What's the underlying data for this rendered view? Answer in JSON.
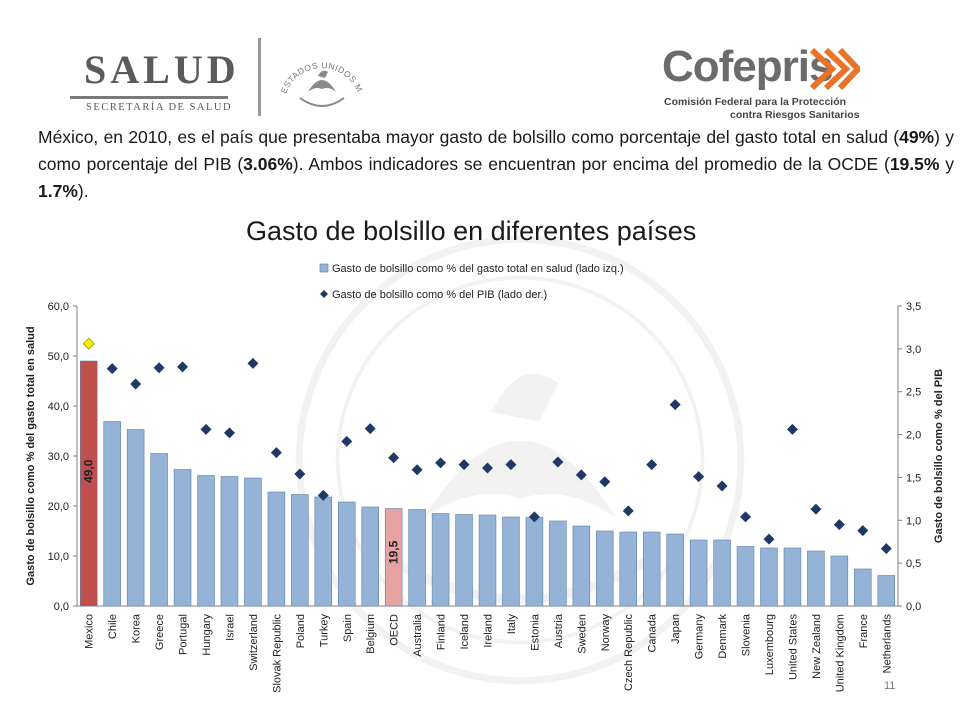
{
  "header": {
    "salud_word": "SALUD",
    "salud_sub": "SECRETARÍA DE SALUD",
    "seal_text": "ESTADOS UNIDOS MEXICANOS",
    "cofepris_name": "Cofepris",
    "cofepris_sub1": "Comisión Federal para la Protección",
    "cofepris_sub2": "contra Riesgos Sanitarios"
  },
  "intro": {
    "part1": "México, en 2010, es el país que presentaba mayor gasto de bolsillo como porcentaje del gasto total en salud (",
    "val1": "49%",
    "part2": ") y como porcentaje del PIB (",
    "val2": "3.06%",
    "part3": "). Ambos indicadores se encuentran por encima del promedio de la OCDE (",
    "val3": "19.5%",
    "part4": " y ",
    "val4": "1.7%",
    "part5": ")."
  },
  "page_number": "11",
  "colors": {
    "bar_default": "#95b3d7",
    "bar_highlight": "#c0504d",
    "bar_oecd": "#e6a3a1",
    "diamond": "#1f3864",
    "diamond_highlight": "#f2f200"
  },
  "chart_data": {
    "type": "bar",
    "title": "Gasto de bolsillo en diferentes países",
    "categories": [
      "Mexico",
      "Chile",
      "Korea",
      "Greece",
      "Portugal",
      "Hungary",
      "Israel",
      "Switzerland",
      "Slovak Republic",
      "Poland",
      "Turkey",
      "Spain",
      "Belgium",
      "OECD",
      "Australia",
      "Finland",
      "Iceland",
      "Ireland",
      "Italy",
      "Estonia",
      "Austria",
      "Sweden",
      "Norway",
      "Czech Republic",
      "Canada",
      "Japan",
      "Germany",
      "Denmark",
      "Slovenia",
      "Luxembourg",
      "United States",
      "New Zealand",
      "United Kingdom",
      "France",
      "Netherlands"
    ],
    "series": [
      {
        "name": "Gasto de bolsillo como % del gasto total en salud (lado izq.)",
        "type": "bar",
        "axis": "left",
        "values": [
          49.0,
          36.9,
          35.3,
          30.5,
          27.3,
          26.1,
          25.9,
          25.6,
          22.8,
          22.3,
          21.8,
          20.8,
          19.8,
          19.5,
          19.3,
          18.5,
          18.3,
          18.2,
          17.8,
          17.7,
          17.0,
          16.0,
          15.0,
          14.8,
          14.8,
          14.4,
          13.2,
          13.2,
          11.9,
          11.6,
          11.6,
          11.0,
          10.0,
          7.4,
          6.1
        ]
      },
      {
        "name": "Gasto de bolsillo como % del PIB (lado der.)",
        "type": "scatter",
        "axis": "right",
        "values": [
          3.06,
          2.77,
          2.59,
          2.78,
          2.79,
          2.06,
          2.02,
          2.83,
          1.79,
          1.54,
          1.29,
          1.92,
          2.07,
          1.73,
          1.59,
          1.67,
          1.65,
          1.61,
          1.65,
          1.04,
          1.68,
          1.53,
          1.45,
          1.11,
          1.65,
          2.35,
          1.51,
          1.4,
          1.04,
          0.78,
          2.06,
          1.13,
          0.95,
          0.88,
          0.67
        ]
      }
    ],
    "data_labels": [
      {
        "category": "Mexico",
        "label": "49,0"
      },
      {
        "category": "OECD",
        "label": "19,5"
      }
    ],
    "ylabel": "Gasto de bolsillo como % del gasto total en salud",
    "y2label": "Gasto de bolsillo como % del PIB",
    "ylim": [
      0,
      60
    ],
    "y2lim": [
      0,
      3.5
    ],
    "yticks": [
      "0,0",
      "10,0",
      "20,0",
      "30,0",
      "40,0",
      "50,0",
      "60,0"
    ],
    "y2ticks": [
      "0,0",
      "0,5",
      "1,0",
      "1,5",
      "2,0",
      "2,5",
      "3,0",
      "3,5"
    ],
    "grid": false,
    "legend_position": "top-center"
  }
}
